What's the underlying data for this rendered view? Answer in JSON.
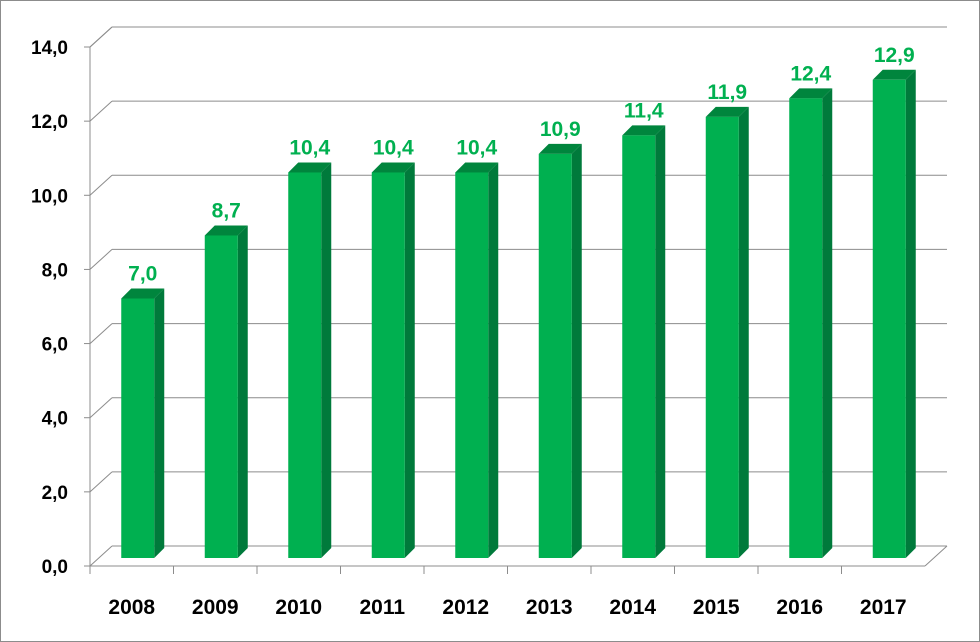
{
  "chart_data": {
    "type": "bar",
    "categories": [
      "2008",
      "2009",
      "2010",
      "2011",
      "2012",
      "2013",
      "2014",
      "2015",
      "2016",
      "2017"
    ],
    "values": [
      7.0,
      8.7,
      10.4,
      10.4,
      10.4,
      10.9,
      11.4,
      11.9,
      12.4,
      12.9
    ],
    "value_labels": [
      "7,0",
      "8,7",
      "10,4",
      "10,4",
      "10,4",
      "10,9",
      "11,4",
      "11,9",
      "12,4",
      "12,9"
    ],
    "yticks": [
      "0,0",
      "2,0",
      "4,0",
      "6,0",
      "8,0",
      "10,0",
      "12,0",
      "14,0"
    ],
    "ylim": [
      0,
      14
    ],
    "grid": true,
    "title": "",
    "xlabel": "",
    "ylabel": "",
    "style": "3d-column"
  },
  "colors": {
    "bar_front": "#00b050",
    "bar_side": "#007a3b",
    "bar_top": "#00853d",
    "data_label": "#00b050",
    "grid": "#8c8c8c"
  }
}
